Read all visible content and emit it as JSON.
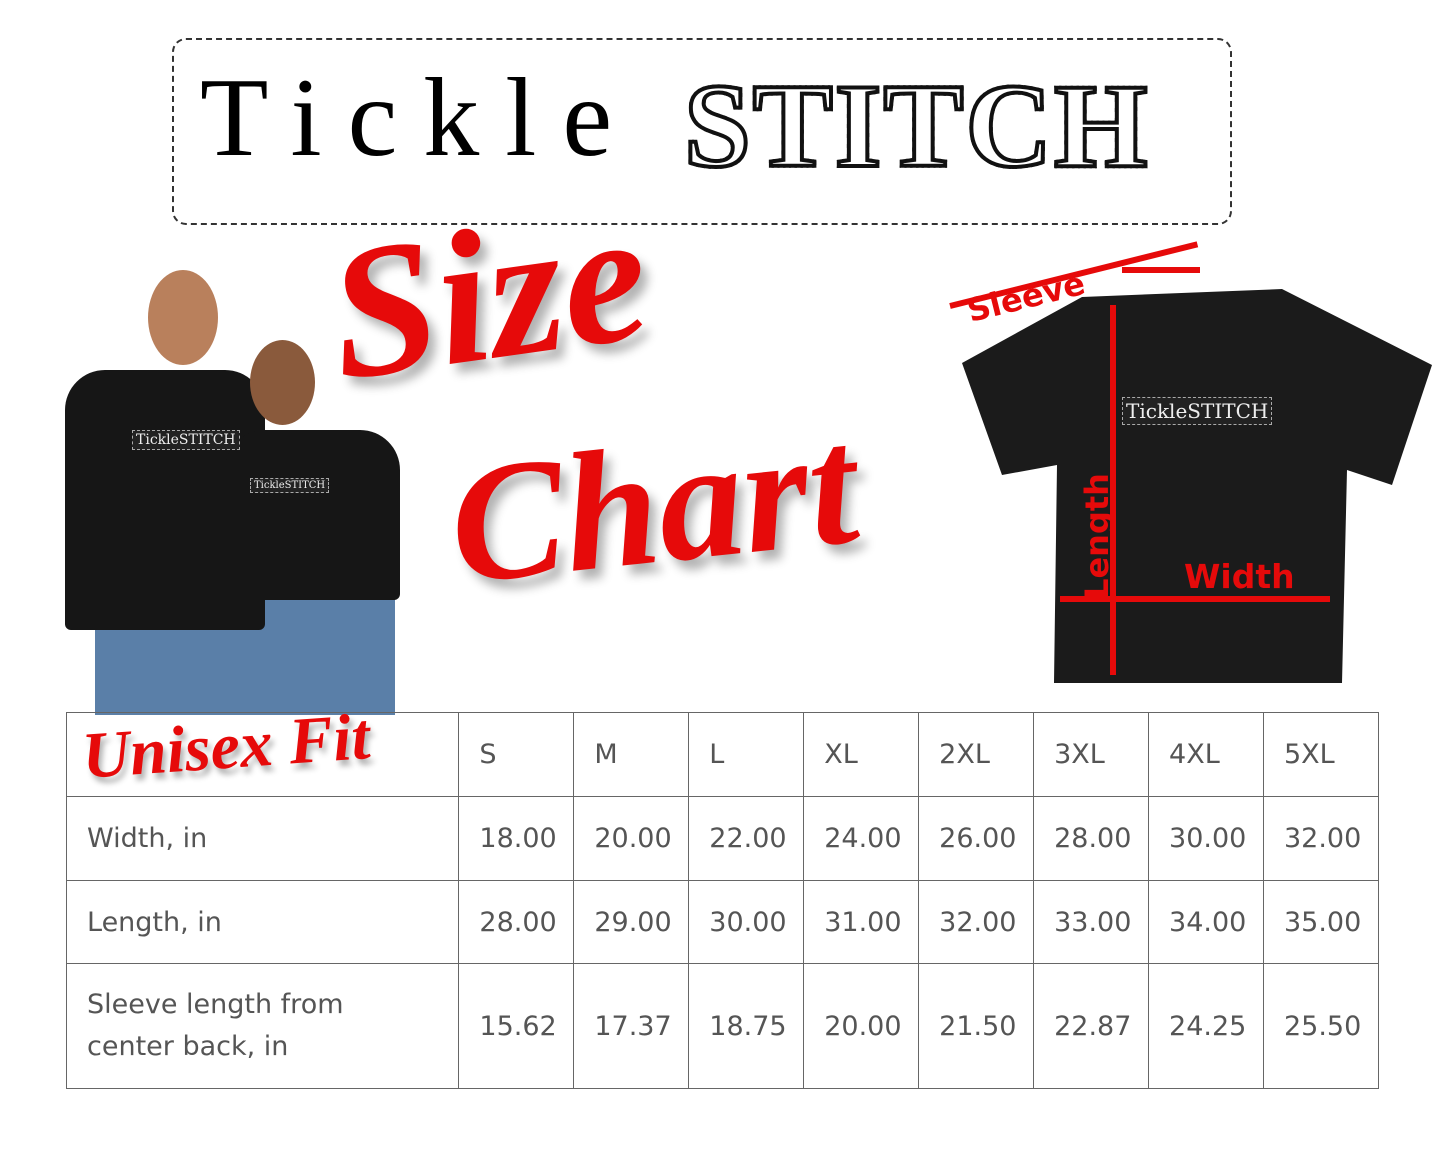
{
  "logo": {
    "part1": "Tickle",
    "part2": "STITCH"
  },
  "title": {
    "line1": "Size",
    "line2": "Chart"
  },
  "photo": {
    "shirt_logo": "TickleSTITCH"
  },
  "diagram": {
    "shirt_logo": "TickleSTITCH",
    "sleeve": "Sleeve",
    "length": "Length",
    "width": "Width",
    "accent": "#e60a0a"
  },
  "table": {
    "corner_label": "Unisex Fit",
    "sizes": [
      "S",
      "M",
      "L",
      "XL",
      "2XL",
      "3XL",
      "4XL",
      "5XL"
    ],
    "rows": [
      {
        "label": "Width, in",
        "values": [
          "18.00",
          "20.00",
          "22.00",
          "24.00",
          "26.00",
          "28.00",
          "30.00",
          "32.00"
        ]
      },
      {
        "label": "Length, in",
        "values": [
          "28.00",
          "29.00",
          "30.00",
          "31.00",
          "32.00",
          "33.00",
          "34.00",
          "35.00"
        ]
      },
      {
        "label": "Sleeve length from center back, in",
        "values": [
          "15.62",
          "17.37",
          "18.75",
          "20.00",
          "21.50",
          "22.87",
          "24.25",
          "25.50"
        ]
      }
    ]
  }
}
